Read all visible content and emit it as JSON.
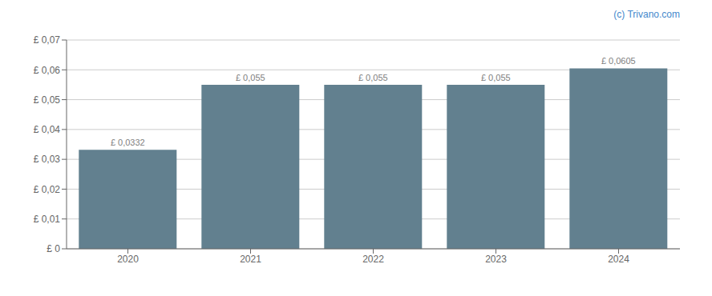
{
  "chart_data": {
    "type": "bar",
    "categories": [
      "2020",
      "2021",
      "2022",
      "2023",
      "2024"
    ],
    "values": [
      0.0332,
      0.055,
      0.055,
      0.055,
      0.0605
    ],
    "value_labels": [
      "£ 0,0332",
      "£ 0,055",
      "£ 0,055",
      "£ 0,055",
      "£ 0,0605"
    ],
    "data_labels": true,
    "color": "#62808f",
    "ylim": [
      0,
      0.07
    ],
    "yticks": [
      {
        "value": 0,
        "label": "£ 0"
      },
      {
        "value": 0.01,
        "label": "£ 0,01"
      },
      {
        "value": 0.02,
        "label": "£ 0,02"
      },
      {
        "value": 0.03,
        "label": "£ 0,03"
      },
      {
        "value": 0.04,
        "label": "£ 0,04"
      },
      {
        "value": 0.05,
        "label": "£ 0,05"
      },
      {
        "value": 0.06,
        "label": "£ 0,06"
      },
      {
        "value": 0.07,
        "label": "£ 0,07"
      }
    ],
    "grid": true,
    "annotations": [
      {
        "text": "(c) Trivano.com",
        "color": "#4488cc"
      }
    ]
  }
}
